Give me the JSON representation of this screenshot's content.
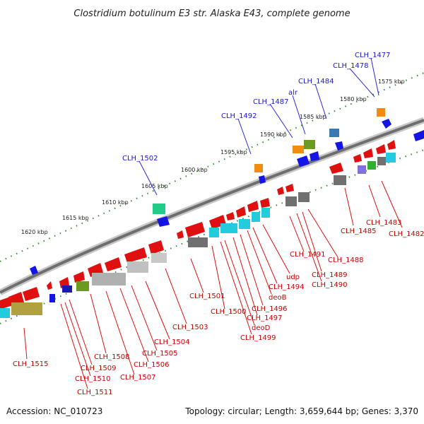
{
  "title": "Clostridium botulinum E3 str. Alaska E43, complete genome",
  "footer": {
    "accession": "Accession: NC_010723",
    "summary": "Topology: circular; Length: 3,659,644 bp; Genes: 3,370"
  },
  "ticks": [
    "1575 kbp",
    "1580 kbp",
    "1585 kbp",
    "1590 kbp",
    "1595 kbp",
    "1600 kbp",
    "1605 kbp",
    "1610 kbp",
    "1615 kbp",
    "1620 kbp"
  ],
  "labels_top": [
    "CLH_1477",
    "CLH_1478",
    "CLH_1484",
    "alr",
    "CLH_1487",
    "CLH_1492",
    "CLH_1502"
  ],
  "labels_bottom": [
    "CLH_1482",
    "CLH_1483",
    "CLH_1485",
    "CLH_1488",
    "CLH_1489",
    "CLH_1490",
    "CLH_1491",
    "udp",
    "CLH_1494",
    "deoB",
    "CLH_1496",
    "CLH_1497",
    "deoD",
    "CLH_1499",
    "CLH_1500",
    "CLH_1501",
    "CLH_1503",
    "CLH_1504",
    "CLH_1505",
    "CLH_1506",
    "CLH_1507",
    "CLH_1508",
    "CLH_1509",
    "CLH_1510",
    "CLH_1511",
    "CLH_1515"
  ],
  "colors": {
    "backbone": "#7a7a7a",
    "tick_dots": "#2e8b2e",
    "label_top": "#1a1ad0",
    "label_bottom": "#cc0000",
    "gene_red": "#e01010",
    "gene_blue": "#1414e6",
    "gene_cyan": "#22ccdd",
    "gene_gray": "#8c8c8c",
    "gene_orange": "#f08c10",
    "gene_green": "#6a9a20",
    "gene_olive": "#b0a040",
    "gene_teal": "#3aa0a0"
  }
}
